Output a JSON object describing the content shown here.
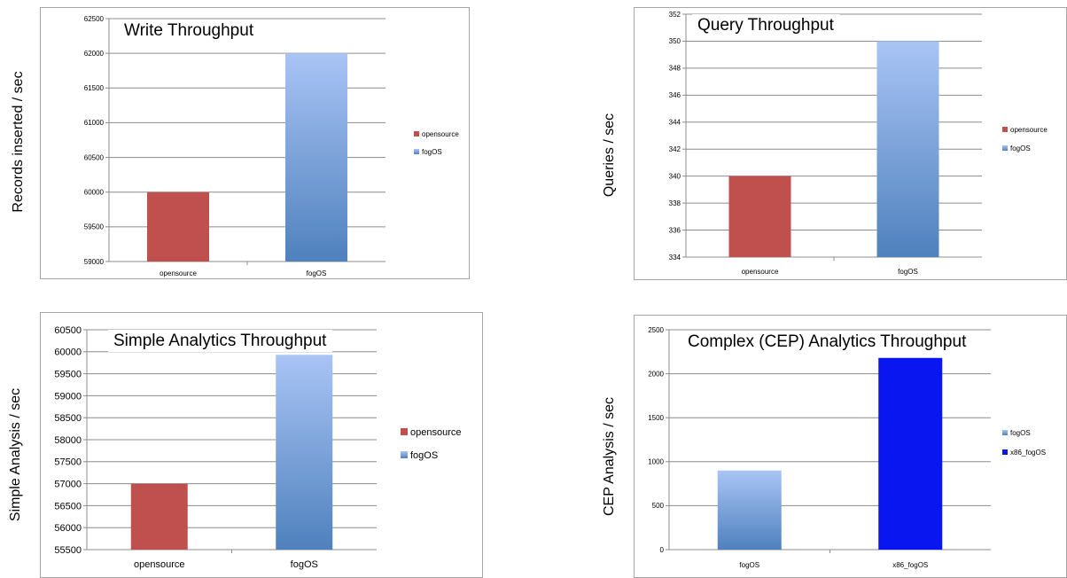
{
  "colors": {
    "opensource": "#c0504d",
    "fogOS_light": "#a9c4f5",
    "fogOS_dark": "#4f81bd",
    "x86_fogOS": "#0a16f0",
    "gridline": "#8c8c8c"
  },
  "chart_data": [
    {
      "type": "bar",
      "title": "Write Throughput",
      "ylabel": "Records inserted / sec",
      "xlabel": "",
      "categories": [
        "opensource",
        "fogOS"
      ],
      "values": [
        60000,
        62000
      ],
      "series_colors": [
        "opensource",
        "fogOS"
      ],
      "ylim": [
        59000,
        62500
      ],
      "ytick_step": 500,
      "yticks": [
        "59000",
        "59500",
        "60000",
        "60500",
        "61000",
        "61500",
        "62000",
        "62500"
      ],
      "legend": [
        "opensource",
        "fogOS"
      ],
      "legend_position": "right",
      "grid": true
    },
    {
      "type": "bar",
      "title": "Query Throughput",
      "ylabel": "Queries / sec",
      "xlabel": "",
      "categories": [
        "opensource",
        "fogOS"
      ],
      "values": [
        340,
        350
      ],
      "series_colors": [
        "opensource",
        "fogOS"
      ],
      "ylim": [
        334,
        352
      ],
      "ytick_step": 2,
      "yticks": [
        "334",
        "336",
        "338",
        "340",
        "342",
        "344",
        "346",
        "348",
        "350",
        "352"
      ],
      "legend": [
        "opensource",
        "fogOS"
      ],
      "legend_position": "right",
      "grid": true
    },
    {
      "type": "bar",
      "title": "Simple Analytics Throughput",
      "ylabel": "Simple Analysis / sec",
      "xlabel": "",
      "categories": [
        "opensource",
        "fogOS"
      ],
      "values": [
        57000,
        59930
      ],
      "series_colors": [
        "opensource",
        "fogOS"
      ],
      "ylim": [
        55500,
        60500
      ],
      "ytick_step": 500,
      "yticks": [
        "55500",
        "56000",
        "56500",
        "57000",
        "57500",
        "58000",
        "58500",
        "59000",
        "59500",
        "60000",
        "60500"
      ],
      "legend": [
        "opensource",
        "fogOS"
      ],
      "legend_position": "right",
      "grid": true
    },
    {
      "type": "bar",
      "title": "Complex (CEP) Analytics Throughput",
      "ylabel": "CEP Analysis / sec",
      "xlabel": "",
      "categories": [
        "fogOS",
        "x86_fogOS"
      ],
      "values": [
        900,
        2180
      ],
      "series_colors": [
        "fogOS",
        "x86_fogOS"
      ],
      "ylim": [
        0,
        2500
      ],
      "ytick_step": 500,
      "yticks": [
        "0",
        "500",
        "1000",
        "1500",
        "2000",
        "2500"
      ],
      "legend": [
        "fogOS",
        "x86_fogOS"
      ],
      "legend_position": "right",
      "grid": true
    }
  ]
}
